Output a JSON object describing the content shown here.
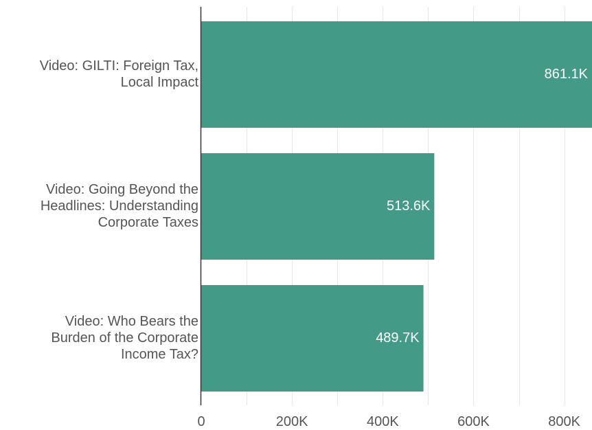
{
  "chart_data": {
    "type": "bar",
    "orientation": "horizontal",
    "categories": [
      [
        "Video: GILTI: Foreign Tax,",
        "Local Impact"
      ],
      [
        "Video: Going Beyond the",
        "Headlines: Understanding",
        "Corporate Taxes"
      ],
      [
        "Video: Who Bears the",
        "Burden of the Corporate",
        "Income Tax?"
      ]
    ],
    "values": [
      861100,
      513600,
      489700
    ],
    "value_labels": [
      "861.1K",
      "513.6K",
      "489.7K"
    ],
    "x_ticks": [
      0,
      200000,
      400000,
      600000,
      800000
    ],
    "x_tick_labels": [
      "0",
      "200K",
      "400K",
      "600K",
      "800K"
    ],
    "xlim": [
      0,
      861100
    ],
    "grid": true,
    "bar_color": "#439a86",
    "grid_color": "#e6e6e6",
    "axis_color": "#333333"
  }
}
